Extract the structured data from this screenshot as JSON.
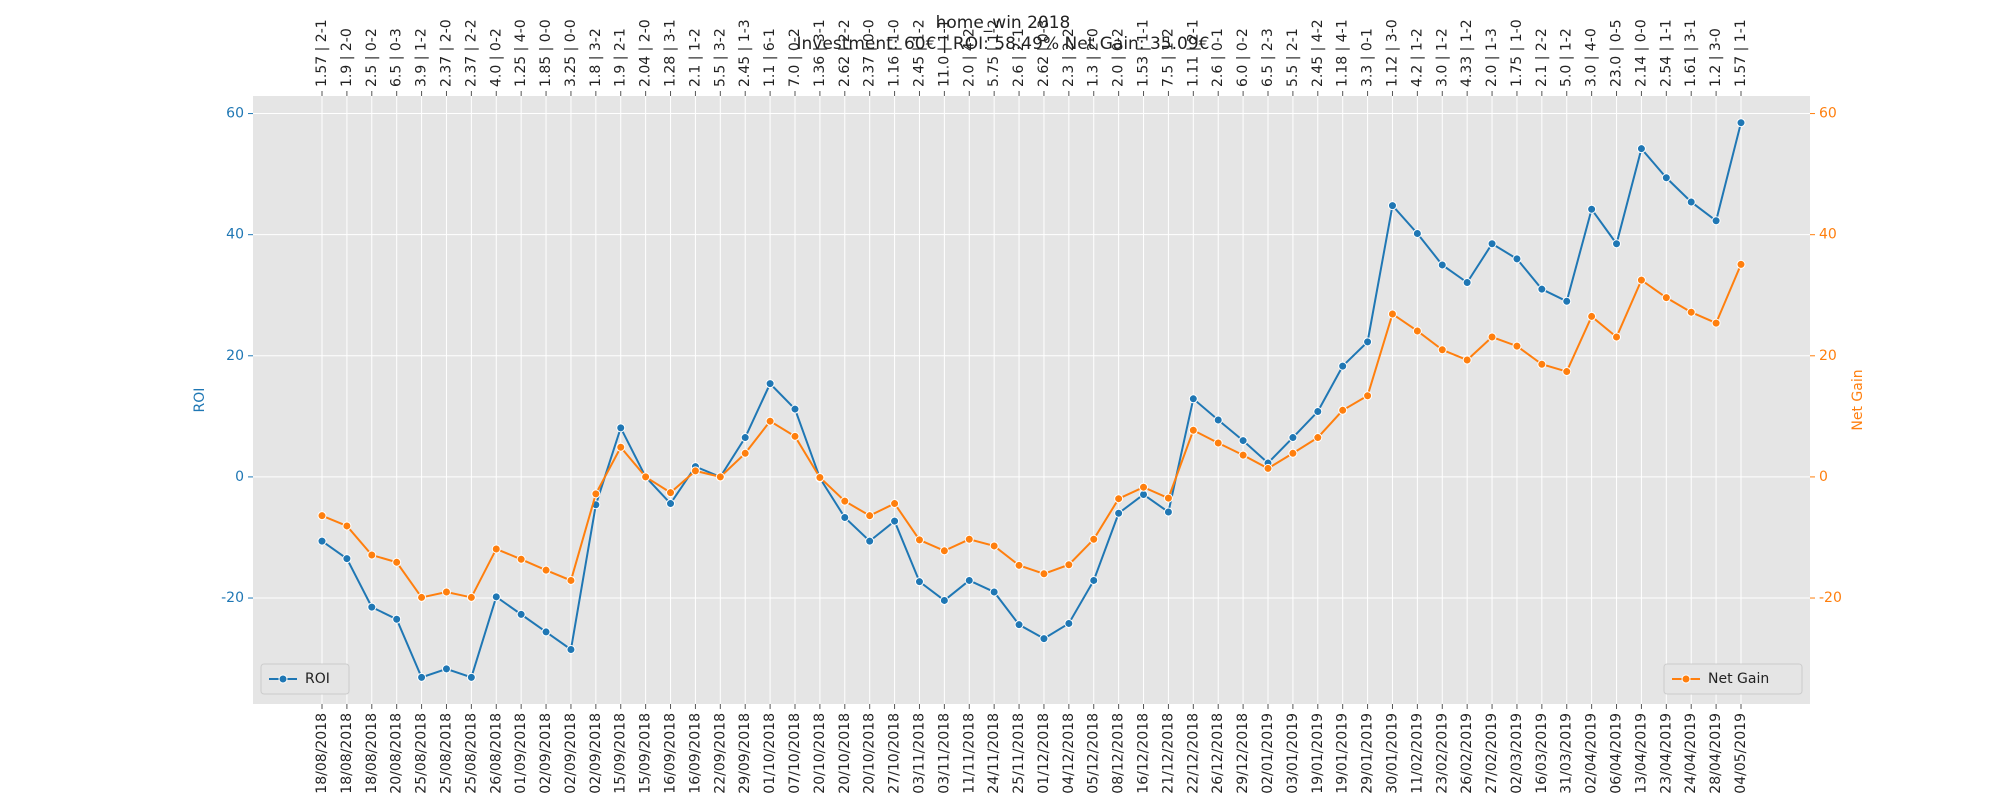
{
  "chart_data": {
    "type": "line",
    "title": "home_win 2018",
    "subtitle": "Investment: 60€ | ROI: 58.49% Net Gain: 35.09€",
    "y_label": "ROI",
    "y2_label": "Net Gain",
    "categories": [
      "18/08/2018",
      "18/08/2018",
      "18/08/2018",
      "20/08/2018",
      "25/08/2018",
      "25/08/2018",
      "25/08/2018",
      "26/08/2018",
      "01/09/2018",
      "02/09/2018",
      "02/09/2018",
      "02/09/2018",
      "15/09/2018",
      "15/09/2018",
      "16/09/2018",
      "16/09/2018",
      "22/09/2018",
      "29/09/2018",
      "01/10/2018",
      "07/10/2018",
      "20/10/2018",
      "20/10/2018",
      "20/10/2018",
      "27/10/2018",
      "03/11/2018",
      "03/11/2018",
      "11/11/2018",
      "24/11/2018",
      "25/11/2018",
      "01/12/2018",
      "04/12/2018",
      "05/12/2018",
      "08/12/2018",
      "16/12/2018",
      "21/12/2018",
      "22/12/2018",
      "26/12/2018",
      "29/12/2018",
      "02/01/2019",
      "03/01/2019",
      "19/01/2019",
      "19/01/2019",
      "29/01/2019",
      "30/01/2019",
      "11/02/2019",
      "23/02/2019",
      "26/02/2019",
      "27/02/2019",
      "02/03/2019",
      "16/03/2019",
      "31/03/2019",
      "02/04/2019",
      "06/04/2019",
      "13/04/2019",
      "23/04/2019",
      "24/04/2019",
      "28/04/2019",
      "04/05/2019"
    ],
    "top_labels": [
      "1.57 | 2-1",
      "1.9 | 2-0",
      "2.5 | 0-2",
      "6.5 | 0-3",
      "3.9 | 1-2",
      "2.37 | 2-0",
      "2.37 | 2-2",
      "4.0 | 0-2",
      "1.25 | 4-0",
      "1.85 | 0-0",
      "3.25 | 0-0",
      "1.8 | 3-2",
      "1.9 | 2-1",
      "2.04 | 2-0",
      "1.28 | 3-1",
      "2.1 | 1-2",
      "5.5 | 3-2",
      "2.45 | 1-3",
      "1.1 | 6-1",
      "7.0 | 0-2",
      "1.36 | 3-1",
      "2.62 | 2-2",
      "2.37 | 0-0",
      "1.16 | 1-0",
      "2.45 | 1-2",
      "11.0 | 1-1",
      "2.0 | 4-2",
      "5.75 | 1-2",
      "2.6 | 2-1",
      "2.62 | 0-3",
      "2.3 | 2-2",
      "1.3 | 2-0",
      "2.0 | 0-2",
      "1.53 | 1-1",
      "7.5 | 1-2",
      "1.11 | 2-1",
      "2.6 | 0-1",
      "6.0 | 0-2",
      "6.5 | 2-3",
      "5.5 | 2-1",
      "2.45 | 4-2",
      "1.18 | 4-1",
      "3.3 | 0-1",
      "1.12 | 3-0",
      "4.2 | 1-2",
      "3.0 | 1-2",
      "4.33 | 1-2",
      "2.0 | 1-3",
      "1.75 | 1-0",
      "2.1 | 2-2",
      "5.0 | 1-2",
      "3.0 | 4-0",
      "23.0 | 0-5",
      "2.14 | 0-0",
      "2.54 | 1-1",
      "1.61 | 3-1",
      "1.2 | 3-0",
      "1.57 | 1-1"
    ],
    "series": [
      {
        "name": "ROI",
        "color": "#1f77b4",
        "axis": "y",
        "legend": "lower left",
        "values": [
          -10.6,
          -13.5,
          -21.5,
          -23.5,
          -33.1,
          -31.7,
          -33.1,
          -19.8,
          -22.7,
          -25.6,
          -28.5,
          -4.6,
          8.1,
          0,
          -4.4,
          1.7,
          0,
          6.5,
          15.4,
          11.2,
          -0.2,
          -6.7,
          -10.6,
          -7.3,
          -17.3,
          -20.4,
          -17.1,
          -19.0,
          -24.4,
          -26.7,
          -24.2,
          -17.1,
          -6.0,
          -2.9,
          -5.8,
          12.9,
          9.4,
          6.0,
          2.3,
          6.5,
          10.8,
          18.3,
          22.3,
          44.8,
          40.2,
          35.0,
          32.1,
          38.5,
          36.0,
          31.0,
          29.0,
          44.2,
          38.5,
          54.2,
          49.4,
          45.4,
          42.3,
          58.49
        ]
      },
      {
        "name": "Net Gain",
        "color": "#ff7f0e",
        "axis": "y2",
        "legend": "lower right",
        "values": [
          -6.4,
          -8.1,
          -12.9,
          -14.1,
          -19.9,
          -19.0,
          -19.9,
          -11.9,
          -13.6,
          -15.4,
          -17.1,
          -2.8,
          4.9,
          0,
          -2.6,
          1.0,
          0,
          3.9,
          9.2,
          6.7,
          -0.1,
          -4.0,
          -6.4,
          -4.4,
          -10.4,
          -12.2,
          -10.3,
          -11.4,
          -14.6,
          -16.0,
          -14.5,
          -10.3,
          -3.6,
          -1.7,
          -3.5,
          7.7,
          5.6,
          3.6,
          1.4,
          3.9,
          6.5,
          11.0,
          13.4,
          26.9,
          24.1,
          21.0,
          19.3,
          23.1,
          21.6,
          18.6,
          17.4,
          26.5,
          23.1,
          32.5,
          29.6,
          27.2,
          25.4,
          35.09
        ]
      }
    ],
    "ylim": [
      -37.5,
      62.9
    ],
    "yticks": [
      -20,
      0,
      20,
      40,
      60
    ],
    "y2lim": [
      -37.5,
      62.9
    ],
    "y2ticks": [
      -20,
      0,
      20,
      40,
      60
    ],
    "grid": true
  }
}
